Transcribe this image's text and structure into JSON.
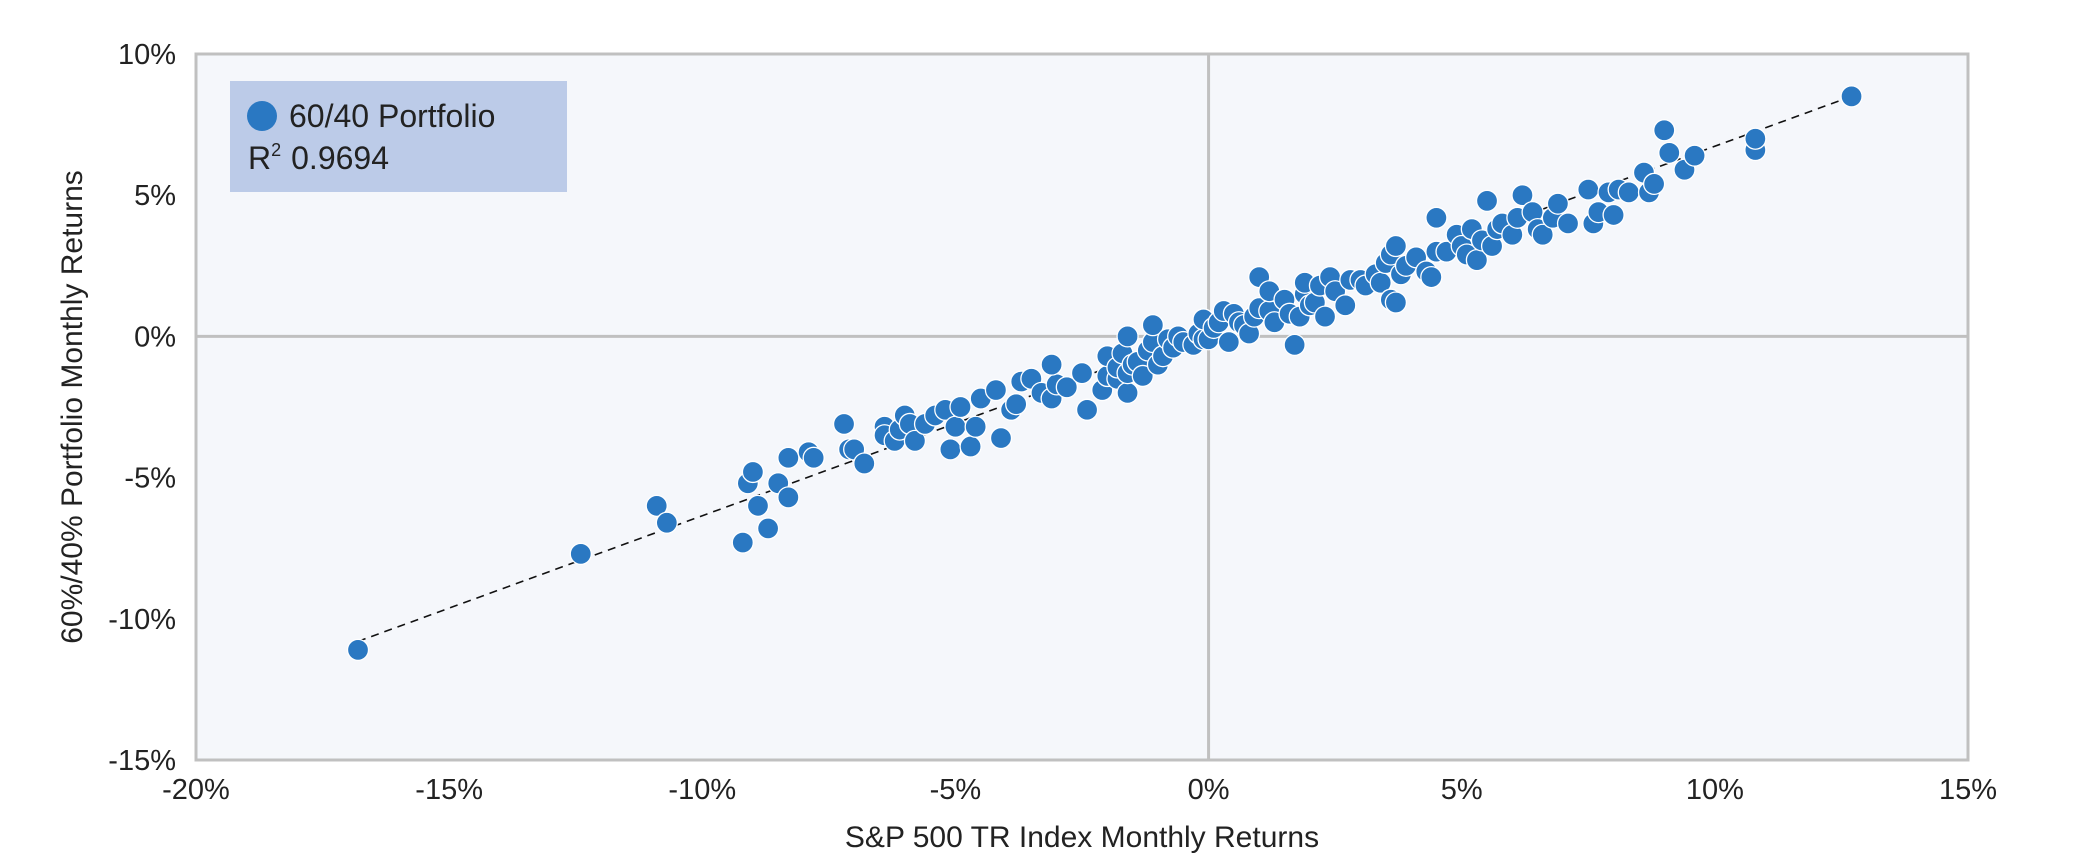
{
  "chart_data": {
    "type": "scatter",
    "title": "",
    "xlabel": "S&P 500 TR Index Monthly Returns",
    "ylabel": "60%/40% Portfolio Monthly Returns",
    "xlim": [
      -20,
      15
    ],
    "ylim": [
      -15,
      10
    ],
    "x_ticks": [
      -20,
      -15,
      -10,
      -5,
      0,
      5,
      10,
      15
    ],
    "y_ticks": [
      -15,
      -10,
      -5,
      0,
      5,
      10
    ],
    "x_tick_labels": [
      "-20%",
      "-15%",
      "-10%",
      "-5%",
      "0%",
      "5%",
      "10%",
      "15%"
    ],
    "y_tick_labels": [
      "-15%",
      "-10%",
      "-5%",
      "0%",
      "5%",
      "10%"
    ],
    "grid": false,
    "legend_position": "top-left",
    "colors": {
      "point": "#2a78c2",
      "plot_background": "#f5f7fb",
      "frame": "#c0c0c0",
      "zero_lines": "#c0c0c0",
      "legend_background": "#bccbe8",
      "trendline": "#111111"
    },
    "trendline": {
      "style": "dashed",
      "x": [
        -16.8,
        12.7
      ],
      "y": [
        -10.8,
        8.5
      ]
    },
    "series": [
      {
        "name": "60/40 Portfolio",
        "r2_label": "R",
        "r2_superscript": "2",
        "r2_value": "0.9694",
        "points": [
          [
            -16.8,
            -11.1
          ],
          [
            -12.4,
            -7.7
          ],
          [
            -10.9,
            -6.0
          ],
          [
            -10.7,
            -6.6
          ],
          [
            -9.2,
            -7.3
          ],
          [
            -9.1,
            -5.2
          ],
          [
            -9.0,
            -4.8
          ],
          [
            -8.9,
            -6.0
          ],
          [
            -8.7,
            -6.8
          ],
          [
            -8.5,
            -5.2
          ],
          [
            -8.3,
            -5.7
          ],
          [
            -8.3,
            -4.3
          ],
          [
            -7.9,
            -4.1
          ],
          [
            -7.8,
            -4.3
          ],
          [
            -7.2,
            -3.1
          ],
          [
            -7.1,
            -4.0
          ],
          [
            -7.0,
            -4.0
          ],
          [
            -6.8,
            -4.5
          ],
          [
            -6.4,
            -3.2
          ],
          [
            -6.4,
            -3.5
          ],
          [
            -6.2,
            -3.7
          ],
          [
            -6.1,
            -3.3
          ],
          [
            -6.0,
            -2.8
          ],
          [
            -5.9,
            -3.1
          ],
          [
            -5.8,
            -3.7
          ],
          [
            -5.6,
            -3.1
          ],
          [
            -5.4,
            -2.8
          ],
          [
            -5.2,
            -2.6
          ],
          [
            -5.1,
            -4.0
          ],
          [
            -5.0,
            -3.2
          ],
          [
            -4.9,
            -2.5
          ],
          [
            -4.7,
            -3.9
          ],
          [
            -4.6,
            -3.2
          ],
          [
            -4.5,
            -2.2
          ],
          [
            -4.2,
            -1.9
          ],
          [
            -4.1,
            -3.6
          ],
          [
            -3.9,
            -2.6
          ],
          [
            -3.8,
            -2.4
          ],
          [
            -3.7,
            -1.6
          ],
          [
            -3.5,
            -1.5
          ],
          [
            -3.3,
            -2.0
          ],
          [
            -3.1,
            -2.2
          ],
          [
            -3.0,
            -1.7
          ],
          [
            -3.1,
            -1.0
          ],
          [
            -2.8,
            -1.8
          ],
          [
            -2.5,
            -1.3
          ],
          [
            -2.4,
            -2.6
          ],
          [
            -2.1,
            -1.9
          ],
          [
            -2.0,
            -1.4
          ],
          [
            -2.0,
            -0.7
          ],
          [
            -1.8,
            -1.5
          ],
          [
            -1.8,
            -1.1
          ],
          [
            -1.7,
            -0.6
          ],
          [
            -1.6,
            -2.0
          ],
          [
            -1.6,
            -1.3
          ],
          [
            -1.6,
            0.0
          ],
          [
            -1.5,
            -1.0
          ],
          [
            -1.4,
            -0.9
          ],
          [
            -1.3,
            -1.4
          ],
          [
            -1.2,
            -0.5
          ],
          [
            -1.1,
            -0.2
          ],
          [
            -1.1,
            0.4
          ],
          [
            -1.0,
            -1.0
          ],
          [
            -0.9,
            -0.7
          ],
          [
            -0.8,
            -0.1
          ],
          [
            -0.7,
            -0.4
          ],
          [
            -0.6,
            0.0
          ],
          [
            -0.5,
            -0.2
          ],
          [
            -0.3,
            -0.3
          ],
          [
            -0.2,
            0.1
          ],
          [
            -0.1,
            -0.1
          ],
          [
            -0.1,
            0.6
          ],
          [
            0.0,
            -0.1
          ],
          [
            0.1,
            0.3
          ],
          [
            0.2,
            0.5
          ],
          [
            0.3,
            0.9
          ],
          [
            0.4,
            -0.2
          ],
          [
            0.5,
            0.8
          ],
          [
            0.6,
            0.5
          ],
          [
            0.7,
            0.4
          ],
          [
            0.8,
            0.1
          ],
          [
            0.9,
            0.7
          ],
          [
            1.0,
            1.0
          ],
          [
            1.0,
            2.1
          ],
          [
            1.2,
            0.9
          ],
          [
            1.2,
            1.6
          ],
          [
            1.3,
            0.5
          ],
          [
            1.5,
            1.3
          ],
          [
            1.6,
            0.8
          ],
          [
            1.7,
            -0.3
          ],
          [
            1.8,
            0.7
          ],
          [
            1.9,
            1.5
          ],
          [
            1.9,
            1.9
          ],
          [
            2.0,
            1.1
          ],
          [
            2.1,
            1.2
          ],
          [
            2.2,
            1.8
          ],
          [
            2.3,
            0.7
          ],
          [
            2.4,
            2.1
          ],
          [
            2.5,
            1.6
          ],
          [
            2.7,
            1.1
          ],
          [
            2.8,
            2.0
          ],
          [
            3.0,
            2.0
          ],
          [
            3.1,
            1.8
          ],
          [
            3.3,
            2.2
          ],
          [
            3.4,
            1.9
          ],
          [
            3.5,
            2.6
          ],
          [
            3.6,
            2.9
          ],
          [
            3.6,
            1.3
          ],
          [
            3.7,
            1.2
          ],
          [
            3.7,
            3.2
          ],
          [
            3.8,
            2.2
          ],
          [
            3.9,
            2.5
          ],
          [
            4.1,
            2.8
          ],
          [
            4.3,
            2.3
          ],
          [
            4.4,
            2.1
          ],
          [
            4.5,
            3.0
          ],
          [
            4.5,
            4.2
          ],
          [
            4.7,
            3.0
          ],
          [
            4.9,
            3.6
          ],
          [
            5.0,
            3.2
          ],
          [
            5.1,
            2.9
          ],
          [
            5.2,
            3.8
          ],
          [
            5.3,
            2.7
          ],
          [
            5.4,
            3.4
          ],
          [
            5.5,
            4.8
          ],
          [
            5.6,
            3.2
          ],
          [
            5.7,
            3.8
          ],
          [
            5.8,
            4.0
          ],
          [
            6.0,
            3.6
          ],
          [
            6.1,
            4.2
          ],
          [
            6.2,
            5.0
          ],
          [
            6.4,
            4.4
          ],
          [
            6.5,
            3.8
          ],
          [
            6.6,
            3.6
          ],
          [
            6.8,
            4.2
          ],
          [
            6.9,
            4.7
          ],
          [
            7.1,
            4.0
          ],
          [
            7.5,
            5.2
          ],
          [
            7.6,
            4.0
          ],
          [
            7.7,
            4.4
          ],
          [
            7.9,
            5.1
          ],
          [
            8.0,
            4.3
          ],
          [
            8.1,
            5.2
          ],
          [
            8.3,
            5.1
          ],
          [
            8.6,
            5.8
          ],
          [
            8.7,
            5.1
          ],
          [
            8.8,
            5.4
          ],
          [
            9.0,
            7.3
          ],
          [
            9.1,
            6.5
          ],
          [
            9.4,
            5.9
          ],
          [
            9.6,
            6.4
          ],
          [
            10.8,
            6.6
          ],
          [
            10.8,
            7.0
          ],
          [
            12.7,
            8.5
          ]
        ]
      }
    ]
  }
}
